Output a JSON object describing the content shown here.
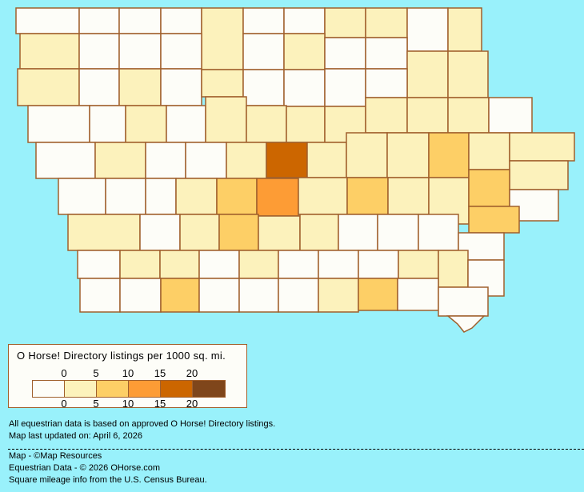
{
  "colors": {
    "background": "#99f1fb",
    "border": "#a0602d",
    "bins": [
      "#fdfdf8",
      "#fcf2bc",
      "#fdcf66",
      "#fd9c35",
      "#cc6600",
      "#7f461b"
    ]
  },
  "legend": {
    "title": "O Horse! Directory listings per 1000 sq. mi.",
    "top_ticks": [
      "0",
      "5",
      "10",
      "15",
      "20"
    ],
    "bottom_ticks": [
      "0",
      "5",
      "10",
      "15",
      "20"
    ]
  },
  "county_levels": [
    0,
    0,
    0,
    0,
    1,
    0,
    0,
    1,
    1,
    0,
    1,
    1,
    0,
    0,
    0,
    0,
    1,
    0,
    0,
    1,
    1,
    1,
    0,
    1,
    0,
    1,
    0,
    0,
    0,
    0,
    0,
    0,
    1,
    0,
    1,
    1,
    1,
    1,
    1,
    1,
    1,
    0,
    0,
    1,
    0,
    0,
    1,
    4,
    1,
    1,
    1,
    2,
    1,
    1,
    1,
    0,
    0,
    0,
    1,
    2,
    3,
    1,
    2,
    1,
    1,
    2,
    0,
    2,
    1,
    0,
    1,
    2,
    1,
    1,
    0,
    0,
    0,
    0,
    0,
    1,
    1,
    0,
    1,
    0,
    0,
    0,
    1,
    1,
    0,
    0,
    0,
    2,
    0,
    0,
    0,
    1,
    2,
    0,
    0
  ],
  "notes": {
    "data_basis": "All equestrian data is based on approved O Horse! Directory listings.",
    "updated": "Map last updated on: April 6, 2026",
    "map_credit": "Map - ©Map Resources",
    "data_credit": "Equestrian Data - © 2026 OHorse.com",
    "census_credit": "Square mileage info from the U.S. Census Bureau."
  }
}
